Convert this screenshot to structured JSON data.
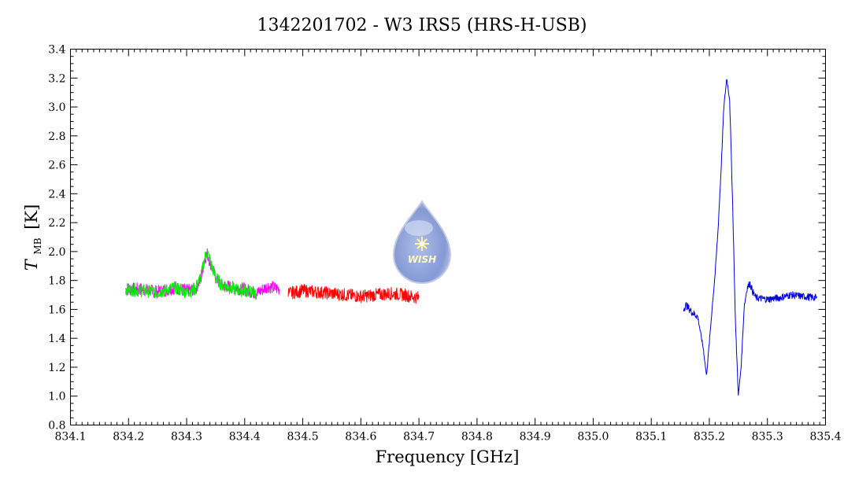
{
  "chart_data": {
    "type": "line",
    "title": "1342201702 - W3 IRS5 (HRS-H-USB)",
    "xlabel": "Frequency [GHz]",
    "ylabel": "T",
    "ylabel_sub": "MB",
    "ylabel_unit": "[K]",
    "xlim": [
      834.1,
      835.4
    ],
    "ylim": [
      0.8,
      3.4
    ],
    "x_ticks": [
      "834.1",
      "834.2",
      "834.3",
      "834.4",
      "834.5",
      "834.6",
      "834.7",
      "834.8",
      "834.9",
      "835.0",
      "835.1",
      "835.2",
      "835.3",
      "835.4"
    ],
    "y_ticks": [
      "0.8",
      "1.0",
      "1.2",
      "1.4",
      "1.6",
      "1.8",
      "2.0",
      "2.2",
      "2.4",
      "2.6",
      "2.8",
      "3.0",
      "3.2",
      "3.4"
    ],
    "grid": false,
    "series": [
      {
        "color": "#ff00ff",
        "x": [
          834.195,
          834.22,
          834.25,
          834.28,
          834.3,
          834.315,
          834.325,
          834.33,
          834.335,
          834.34,
          834.35,
          834.36,
          834.38,
          834.4,
          834.42,
          834.44,
          834.46
        ],
        "y": [
          1.74,
          1.74,
          1.72,
          1.75,
          1.73,
          1.74,
          1.82,
          1.93,
          1.99,
          1.93,
          1.82,
          1.77,
          1.75,
          1.74,
          1.71,
          1.76,
          1.74
        ]
      },
      {
        "color": "#00ee00",
        "x": [
          834.195,
          834.22,
          834.25,
          834.28,
          834.3,
          834.315,
          834.325,
          834.33,
          834.335,
          834.34,
          834.35,
          834.36,
          834.38,
          834.4,
          834.42
        ],
        "y": [
          1.74,
          1.73,
          1.72,
          1.75,
          1.72,
          1.74,
          1.83,
          1.94,
          2.0,
          1.94,
          1.82,
          1.77,
          1.74,
          1.73,
          1.71
        ]
      },
      {
        "color": "#ff0000",
        "x": [
          834.475,
          834.5,
          834.525,
          834.55,
          834.575,
          834.6,
          834.625,
          834.65,
          834.675,
          834.7
        ],
        "y": [
          1.71,
          1.73,
          1.72,
          1.71,
          1.7,
          1.69,
          1.7,
          1.71,
          1.7,
          1.68
        ]
      },
      {
        "color": "#0000dd",
        "x": [
          835.155,
          835.16,
          835.17,
          835.18,
          835.19,
          835.195,
          835.2,
          835.205,
          835.21,
          835.215,
          835.22,
          835.225,
          835.23,
          835.235,
          835.24,
          835.245,
          835.25,
          835.255,
          835.26,
          835.265,
          835.27,
          835.275,
          835.28,
          835.3,
          835.32,
          835.34,
          835.36,
          835.385
        ],
        "y": [
          1.6,
          1.63,
          1.58,
          1.55,
          1.32,
          1.14,
          1.37,
          1.62,
          1.85,
          2.15,
          2.55,
          3.0,
          3.2,
          3.05,
          2.35,
          1.5,
          1.0,
          1.22,
          1.62,
          1.75,
          1.78,
          1.72,
          1.68,
          1.67,
          1.68,
          1.7,
          1.69,
          1.68
        ]
      }
    ]
  },
  "logo": {
    "name": "WISH-logo",
    "text": "WISH"
  }
}
